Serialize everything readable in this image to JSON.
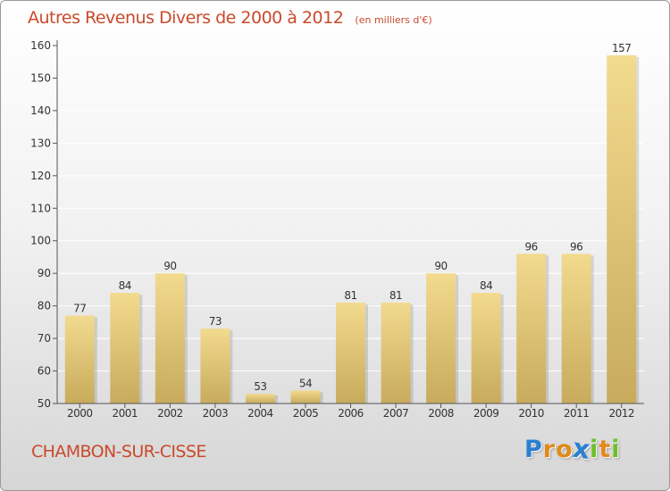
{
  "title": "Autres Revenus Divers de 2000 à 2012",
  "unit": "(en milliers d'€)",
  "commune": "CHAMBON-SUR-CISSE",
  "logo": {
    "letters": [
      "P",
      "r",
      "o",
      "x",
      "i",
      "t",
      "i"
    ],
    "colors": [
      "#2a7fd0",
      "#e08a1a",
      "#e08a1a",
      "#2a7fd0",
      "#6cbf2a",
      "#e08a1a",
      "#6cbf2a"
    ],
    "alt": "Proxiti"
  },
  "colors": {
    "title": "#c94a2c",
    "bar_top": "#f2da8e",
    "bar_bottom": "#c8ab5c",
    "axis": "#555555",
    "grid": "#ffffff"
  },
  "chart_data": {
    "type": "bar",
    "categories": [
      "2000",
      "2001",
      "2002",
      "2003",
      "2004",
      "2005",
      "2006",
      "2007",
      "2008",
      "2009",
      "2010",
      "2011",
      "2012"
    ],
    "values": [
      77,
      84,
      90,
      73,
      53,
      54,
      81,
      81,
      90,
      84,
      96,
      96,
      157
    ],
    "data_labels": [
      "77",
      "84",
      "90",
      "73",
      "53",
      "54",
      "81",
      "81",
      "90",
      "84",
      "96",
      "96",
      "157"
    ],
    "y_ticks": [
      "50",
      "60",
      "70",
      "80",
      "90",
      "100",
      "110",
      "120",
      "130",
      "140",
      "150",
      "160"
    ],
    "ylim": [
      50,
      160
    ],
    "grid": true,
    "xlabel": "",
    "ylabel": ""
  }
}
